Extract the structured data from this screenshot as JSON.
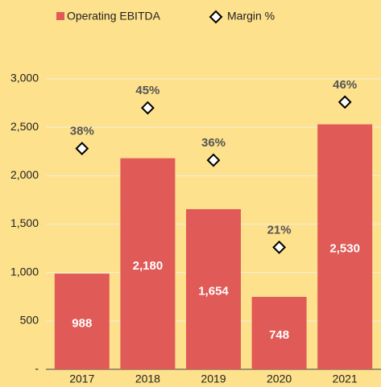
{
  "chart_data": {
    "type": "bar_marker",
    "categories": [
      "2017",
      "2018",
      "2019",
      "2020",
      "2021"
    ],
    "series": [
      {
        "name": "Operating EBITDA",
        "color": "#e05a57",
        "values": [
          988,
          2180,
          1654,
          748,
          2530
        ],
        "value_labels": [
          "988",
          "2,180",
          "1,654",
          "748",
          "2,530"
        ]
      },
      {
        "name": "Margin %",
        "color": "#000000",
        "axis": "y2",
        "values": [
          38,
          45,
          36,
          21,
          46
        ],
        "value_labels": [
          "38%",
          "45%",
          "36%",
          "21%",
          "46%"
        ]
      }
    ],
    "ylim": [
      0,
      3000
    ],
    "yticks": [
      {
        "value": 0,
        "label": "-"
      },
      500,
      {
        "value": 1000,
        "label": "1,000"
      },
      {
        "value": 1500,
        "label": "1,500"
      },
      {
        "value": 2000,
        "label": "2,000"
      },
      {
        "value": 2500,
        "label": "2,500"
      },
      {
        "value": 3000,
        "label": "3,000"
      }
    ],
    "y2lim": [
      0,
      50
    ],
    "grid": true
  }
}
